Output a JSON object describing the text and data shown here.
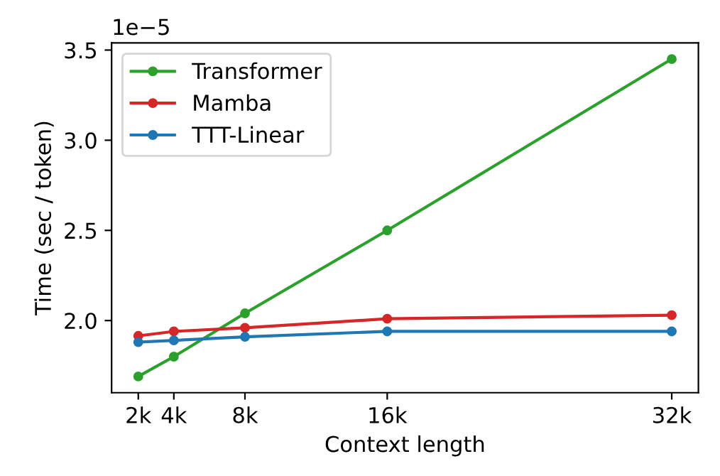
{
  "chart_data": {
    "type": "line",
    "xlabel": "Context length",
    "ylabel": "Time (sec / token)",
    "annotations": [
      "1e−5"
    ],
    "x": [
      2,
      4,
      8,
      16,
      32
    ],
    "series": [
      {
        "name": "Transformer",
        "color": "#2ca02c",
        "values": [
          1.69,
          1.8,
          2.04,
          2.5,
          3.45
        ]
      },
      {
        "name": "Mamba",
        "color": "#d62728",
        "values": [
          1.915,
          1.94,
          1.96,
          2.01,
          2.03
        ]
      },
      {
        "name": "TTT-Linear",
        "color": "#1f77b4",
        "values": [
          1.88,
          1.89,
          1.91,
          1.94,
          1.94
        ]
      }
    ],
    "xlim": [
      0.5,
      33.5
    ],
    "xticks": [
      {
        "value": 2,
        "label": "2k"
      },
      {
        "value": 4,
        "label": "4k"
      },
      {
        "value": 8,
        "label": "8k"
      },
      {
        "value": 16,
        "label": "16k"
      },
      {
        "value": 32,
        "label": "32k"
      }
    ],
    "ylim": [
      1.6,
      3.54
    ],
    "yticks": [
      {
        "value": 2.0,
        "label": "2.0"
      },
      {
        "value": 2.5,
        "label": "2.5"
      },
      {
        "value": 3.0,
        "label": "3.0"
      },
      {
        "value": 3.5,
        "label": "3.5"
      }
    ],
    "marker": "circle",
    "line_style": "solid",
    "grid": false,
    "legend": "top left"
  }
}
